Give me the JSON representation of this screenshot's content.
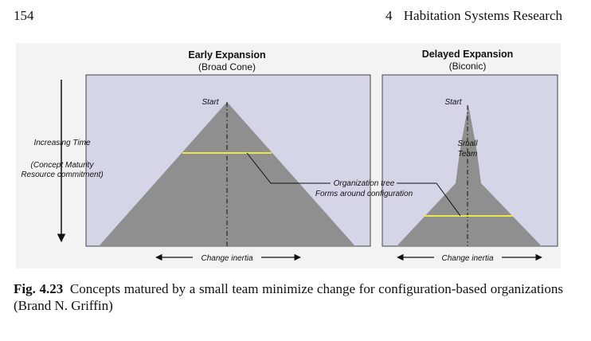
{
  "header": {
    "page_number": "154",
    "chapter_number": "4",
    "chapter_title": "Habitation Systems Research"
  },
  "figure": {
    "left_panel": {
      "title": "Early Expansion",
      "subtitle": "(Broad Cone)",
      "start_label": "Start",
      "inertia_label": "Change inertia"
    },
    "right_panel": {
      "title": "Delayed Expansion",
      "subtitle": "(Biconic)",
      "start_label": "Start",
      "team_label_line1": "Small",
      "team_label_line2": "Team",
      "inertia_label": "Change inertia"
    },
    "time_axis": {
      "line1": "Increasing Time",
      "line2": "(Concept Maturity",
      "line3": "Resource commitment)"
    },
    "org_tree": {
      "line1": "Organization tree",
      "line2": "Forms around configuration"
    },
    "colors": {
      "panel_fill": "#d4d6e8",
      "cone_fill": "#8f8f8f",
      "yellow_line": "#e8e84a"
    }
  },
  "caption": {
    "label": "Fig. 4.23",
    "text": "Concepts matured by a small team minimize change for configuration-based organizations (Brand N. Griffin)"
  }
}
